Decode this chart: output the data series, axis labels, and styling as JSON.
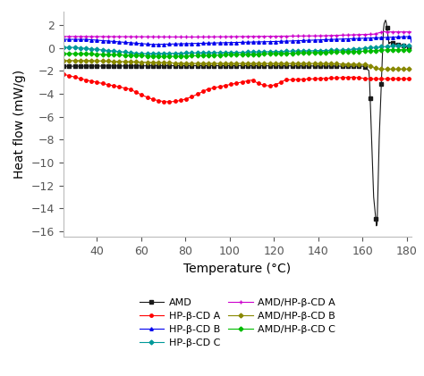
{
  "title": "",
  "xlabel": "Temperature (°C)",
  "ylabel": "Heat flow (mW/g)",
  "xlim": [
    25,
    182
  ],
  "ylim": [
    -16.5,
    3.2
  ],
  "yticks": [
    2,
    0,
    -2,
    -4,
    -6,
    -8,
    -10,
    -12,
    -14,
    -16
  ],
  "xticks": [
    40,
    60,
    80,
    100,
    120,
    140,
    160,
    180
  ],
  "background_color": "#ffffff",
  "series": [
    {
      "label": "AMD",
      "color": "#1a1a1a",
      "marker": "s",
      "markersize": 2.5,
      "linewidth": 0.8,
      "type": "AMD"
    },
    {
      "label": "HP-β-CD A",
      "color": "#ff0000",
      "marker": "o",
      "markersize": 2.5,
      "linewidth": 0.8,
      "type": "HP_A"
    },
    {
      "label": "HP-β-CD B",
      "color": "#0000ee",
      "marker": "^",
      "markersize": 2.5,
      "linewidth": 0.8,
      "type": "HP_B"
    },
    {
      "label": "HP-β-CD C",
      "color": "#009999",
      "marker": "D",
      "markersize": 2.5,
      "linewidth": 0.8,
      "type": "HP_C"
    },
    {
      "label": "AMD/HP-β-CD A",
      "color": "#cc00cc",
      "marker": "+",
      "markersize": 3.5,
      "linewidth": 0.8,
      "type": "AMD_A"
    },
    {
      "label": "AMD/HP-β-CD B",
      "color": "#888800",
      "marker": "D",
      "markersize": 2.5,
      "linewidth": 0.8,
      "type": "AMD_B"
    },
    {
      "label": "AMD/HP-β-CD C",
      "color": "#00bb00",
      "marker": "D",
      "markersize": 2.5,
      "linewidth": 0.8,
      "type": "AMD_C"
    }
  ]
}
